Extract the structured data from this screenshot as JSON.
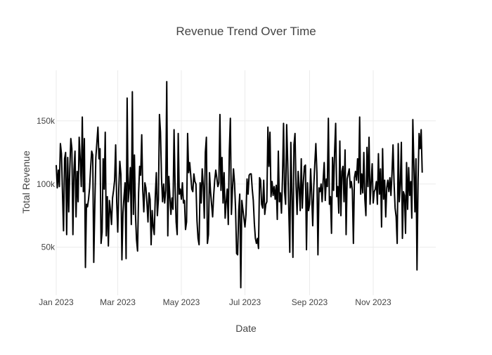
{
  "chart_data": {
    "type": "line",
    "title": "Revenue Trend Over Time",
    "xlabel": "Date",
    "ylabel": "Total Revenue",
    "x_range": [
      "2023-01-01",
      "2023-12-31"
    ],
    "ylim": [
      12000,
      190000
    ],
    "x_ticks": [
      {
        "date": "2023-01-01",
        "label": "Jan 2023"
      },
      {
        "date": "2023-03-01",
        "label": "Mar 2023"
      },
      {
        "date": "2023-05-01",
        "label": "May 2023"
      },
      {
        "date": "2023-07-01",
        "label": "Jul 2023"
      },
      {
        "date": "2023-09-01",
        "label": "Sep 2023"
      },
      {
        "date": "2023-11-01",
        "label": "Nov 2023"
      }
    ],
    "y_ticks": [
      {
        "value": 50000,
        "label": "50k"
      },
      {
        "value": 100000,
        "label": "100k"
      },
      {
        "value": 150000,
        "label": "150k"
      }
    ],
    "grid": true,
    "line_color": "#000000",
    "series": [
      {
        "values": [
          115000,
          97000,
          111000,
          98000,
          132000,
          124000,
          93000,
          63000,
          120000,
          125000,
          60000,
          121000,
          78000,
          112000,
          136000,
          128000,
          60000,
          111000,
          126000,
          74000,
          110000,
          86000,
          137000,
          120000,
          98000,
          153000,
          94000,
          136000,
          34000,
          84000,
          82000,
          88000,
          97000,
          113000,
          126000,
          123000,
          38000,
          83000,
          121000,
          133000,
          145000,
          120000,
          128000,
          53000,
          62000,
          120000,
          96000,
          141000,
          59000,
          90000,
          51000,
          87000,
          79000,
          68000,
          89000,
          95000,
          103000,
          131000,
          86000,
          62000,
          96000,
          118000,
          108000,
          40000,
          77000,
          90000,
          101000,
          41000,
          168000,
          86000,
          96000,
          113000,
          68000,
          173000,
          76000,
          123000,
          76000,
          56000,
          47000,
          93000,
          114000,
          107000,
          139000,
          95000,
          78000,
          101000,
          97000,
          85000,
          70000,
          93000,
          88000,
          52000,
          79000,
          66000,
          60000,
          90000,
          109000,
          75000,
          88000,
          155000,
          141000,
          104000,
          86000,
          100000,
          85000,
          95000,
          181000,
          59000,
          106000,
          90000,
          76000,
          89000,
          80000,
          143000,
          98000,
          70000,
          60000,
          140000,
          92000,
          96000,
          88000,
          101000,
          85000,
          87000,
          64000,
          70000,
          140000,
          109000,
          117000,
          107000,
          96000,
          94000,
          108000,
          102000,
          100000,
          71000,
          57000,
          52000,
          101000,
          85000,
          112000,
          99000,
          73000,
          125000,
          137000,
          53000,
          60000,
          109000,
          94000,
          84000,
          74000,
          91000,
          103000,
          111000,
          105000,
          98000,
          101000,
          155000,
          95000,
          121000,
          85000,
          109000,
          73000,
          86000,
          96000,
          68000,
          126000,
          152000,
          76000,
          95000,
          112000,
          101000,
          80000,
          45000,
          44000,
          79000,
          92000,
          18000,
          87000,
          80000,
          73000,
          66000,
          76000,
          104000,
          92000,
          107000,
          108000,
          108000,
          96000,
          87000,
          69000,
          57000,
          53000,
          57000,
          49000,
          105000,
          103000,
          84000,
          81000,
          103000,
          76000,
          84000,
          86000,
          145000,
          114000,
          141000,
          90000,
          102000,
          91000,
          98000,
          88000,
          99000,
          72000,
          126000,
          86000,
          93000,
          77000,
          105000,
          148000,
          94000,
          84000,
          147000,
          118000,
          81000,
          46000,
          133000,
          92000,
          42000,
          131000,
          140000,
          98000,
          76000,
          110000,
          97000,
          79000,
          120000,
          81000,
          101000,
          114000,
          115000,
          48000,
          101000,
          79000,
          84000,
          112000,
          91000,
          67000,
          98000,
          116000,
          132000,
          109000,
          44000,
          97000,
          94000,
          100000,
          86000,
          103000,
          117000,
          87000,
          104000,
          98000,
          152000,
          84000,
          90000,
          61000,
          121000,
          95000,
          126000,
          148000,
          90000,
          98000,
          77000,
          134000,
          75000,
          110000,
          114000,
          86000,
          127000,
          60000,
          104000,
          108000,
          112000,
          97000,
          102000,
          95000,
          53000,
          105000,
          110000,
          103000,
          120000,
          101000,
          153000,
          92000,
          108000,
          93000,
          125000,
          88000,
          75000,
          129000,
          98000,
          137000,
          84000,
          101000,
          116000,
          85000,
          94000,
          96000,
          102000,
          84000,
          124000,
          92000,
          112000,
          66000,
          128000,
          88000,
          103000,
          74000,
          97000,
          103000,
          94000,
          105000,
          91000,
          108000,
          131000,
          101000,
          81000,
          74000,
          53000,
          132000,
          86000,
          100000,
          133000,
          57000,
          94000,
          91000,
          61000,
          117000,
          80000,
          113000,
          91000,
          102000,
          73000,
          151000,
          115000,
          78000,
          120000,
          32000,
          102000,
          140000,
          128000,
          143000,
          109000
        ]
      }
    ]
  }
}
